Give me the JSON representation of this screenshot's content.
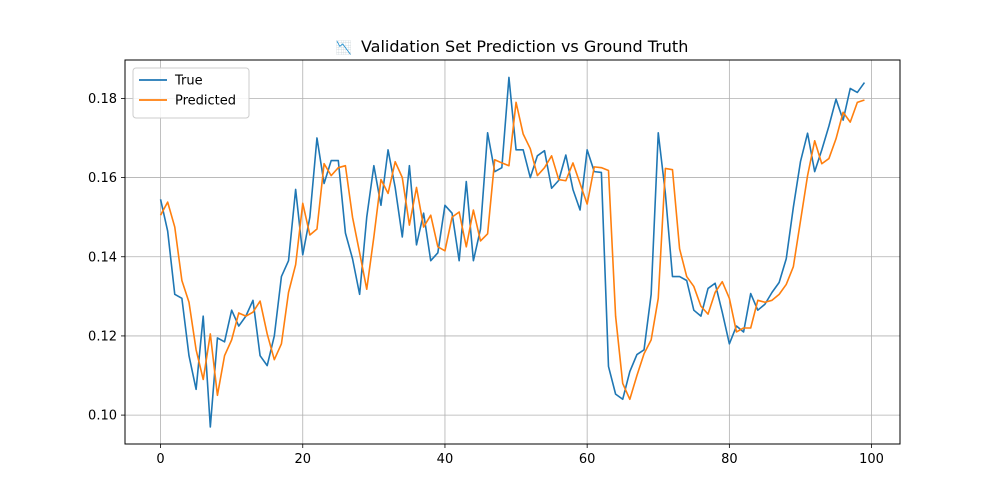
{
  "chart_data": {
    "type": "line",
    "title": "📉 Validation Set Prediction vs Ground Truth",
    "title_icon": "📉",
    "title_text": "Validation Set Prediction vs Ground Truth",
    "xlabel": "",
    "ylabel": "",
    "xlim": [
      -5,
      104
    ],
    "ylim": [
      0.0927,
      0.1897
    ],
    "xticks": [
      0,
      20,
      40,
      60,
      80,
      100
    ],
    "yticks": [
      0.1,
      0.12,
      0.14,
      0.16,
      0.18
    ],
    "xtick_labels": [
      "0",
      "20",
      "40",
      "60",
      "80",
      "100"
    ],
    "ytick_labels": [
      "0.10",
      "0.12",
      "0.14",
      "0.16",
      "0.18"
    ],
    "grid": true,
    "legend_position": "top-left",
    "x": [
      0,
      1,
      2,
      3,
      4,
      5,
      6,
      7,
      8,
      9,
      10,
      11,
      12,
      13,
      14,
      15,
      16,
      17,
      18,
      19,
      20,
      21,
      22,
      23,
      24,
      25,
      26,
      27,
      28,
      29,
      30,
      31,
      32,
      33,
      34,
      35,
      36,
      37,
      38,
      39,
      40,
      41,
      42,
      43,
      44,
      45,
      46,
      47,
      48,
      49,
      50,
      51,
      52,
      53,
      54,
      55,
      56,
      57,
      58,
      59,
      60,
      61,
      62,
      63,
      64,
      65,
      66,
      67,
      68,
      69,
      70,
      71,
      72,
      73,
      74,
      75,
      76,
      77,
      78,
      79,
      80,
      81,
      82,
      83,
      84,
      85,
      86,
      87,
      88,
      89,
      90,
      91,
      92,
      93,
      94,
      95,
      96,
      97,
      98,
      99
    ],
    "series": [
      {
        "name": "True",
        "color": "#1f77b4",
        "values": [
          0.1545,
          0.1465,
          0.1305,
          0.1295,
          0.115,
          0.1065,
          0.125,
          0.097,
          0.1195,
          0.1185,
          0.1265,
          0.1225,
          0.125,
          0.129,
          0.115,
          0.1125,
          0.12,
          0.135,
          0.139,
          0.157,
          0.1405,
          0.15,
          0.17,
          0.1585,
          0.1643,
          0.1643,
          0.146,
          0.1395,
          0.1305,
          0.15,
          0.163,
          0.153,
          0.167,
          0.1575,
          0.145,
          0.163,
          0.143,
          0.151,
          0.139,
          0.141,
          0.153,
          0.151,
          0.139,
          0.159,
          0.139,
          0.147,
          0.1713,
          0.1615,
          0.1625,
          0.1853,
          0.167,
          0.167,
          0.16,
          0.1655,
          0.1668,
          0.1573,
          0.1593,
          0.1657,
          0.157,
          0.1518,
          0.167,
          0.1615,
          0.1613,
          0.1123,
          0.1053,
          0.104,
          0.111,
          0.1153,
          0.1165,
          0.1305,
          0.1713,
          0.156,
          0.135,
          0.135,
          0.134,
          0.1265,
          0.125,
          0.132,
          0.1333,
          0.126,
          0.118,
          0.1225,
          0.121,
          0.1307,
          0.1265,
          0.128,
          0.131,
          0.1335,
          0.1395,
          0.1525,
          0.164,
          0.1712,
          0.1615,
          0.167,
          0.173,
          0.1798,
          0.1745,
          0.1825,
          0.1815,
          0.184
        ]
      },
      {
        "name": "Predicted",
        "color": "#ff7f0e",
        "values": [
          0.1505,
          0.1538,
          0.1475,
          0.134,
          0.1285,
          0.1165,
          0.109,
          0.1205,
          0.105,
          0.115,
          0.119,
          0.1258,
          0.125,
          0.126,
          0.1288,
          0.1205,
          0.114,
          0.118,
          0.131,
          0.138,
          0.1535,
          0.1455,
          0.147,
          0.1635,
          0.1605,
          0.1625,
          0.163,
          0.15,
          0.141,
          0.1318,
          0.145,
          0.1595,
          0.156,
          0.164,
          0.16,
          0.148,
          0.1575,
          0.1475,
          0.1505,
          0.1425,
          0.1415,
          0.15,
          0.1513,
          0.1425,
          0.1518,
          0.144,
          0.1458,
          0.1645,
          0.1637,
          0.163,
          0.179,
          0.171,
          0.1673,
          0.1605,
          0.1625,
          0.1655,
          0.1595,
          0.1592,
          0.1637,
          0.1585,
          0.1533,
          0.1627,
          0.1625,
          0.1618,
          0.125,
          0.108,
          0.104,
          0.11,
          0.1155,
          0.119,
          0.1295,
          0.1623,
          0.162,
          0.142,
          0.135,
          0.1325,
          0.1275,
          0.1255,
          0.131,
          0.1337,
          0.1295,
          0.121,
          0.122,
          0.122,
          0.129,
          0.1285,
          0.129,
          0.1305,
          0.133,
          0.1375,
          0.149,
          0.1605,
          0.1693,
          0.1635,
          0.1648,
          0.1698,
          0.1765,
          0.174,
          0.179,
          0.1796
        ]
      }
    ]
  }
}
